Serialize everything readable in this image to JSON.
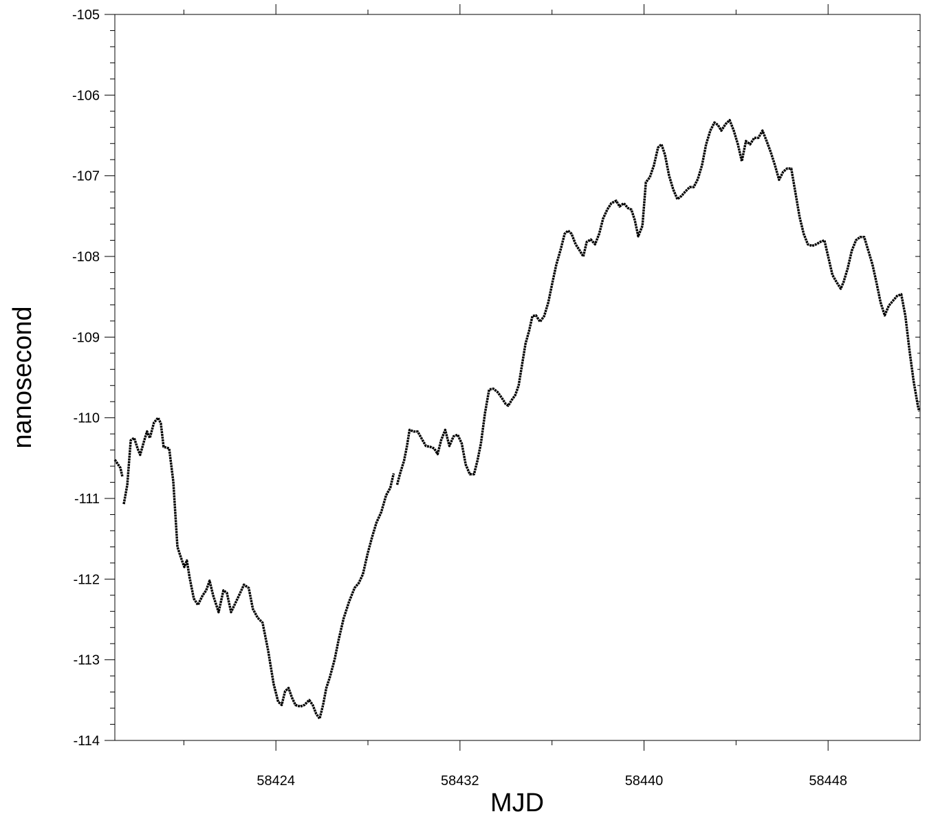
{
  "chart_data": {
    "type": "line",
    "x_label": "MJD",
    "y_label": "nanosecond",
    "xlim": [
      58417,
      58452
    ],
    "xticks": [
      58424,
      58432,
      58440,
      58448
    ],
    "xminorticks": [
      58420,
      58428,
      58436,
      58444
    ],
    "ylim": [
      -114,
      -105
    ],
    "yticks": [
      -105,
      -106,
      -107,
      -108,
      -109,
      -110,
      -111,
      -112,
      -113,
      -114
    ],
    "yminorticks": [
      -105.2,
      -105.4,
      -105.6,
      -105.8,
      -106.2,
      -106.4,
      -106.6,
      -106.8,
      -107.2,
      -107.4,
      -107.6,
      -107.8,
      -108.2,
      -108.4,
      -108.6,
      -108.8,
      -109.2,
      -109.4,
      -109.6,
      -109.8,
      -110.2,
      -110.4,
      -110.6,
      -110.8,
      -111.2,
      -111.4,
      -111.6,
      -111.8,
      -112.2,
      -112.4,
      -112.6,
      -112.8,
      -113.2,
      -113.4,
      -113.6,
      -113.8
    ],
    "color": "#000000",
    "x": [
      58417.0,
      58417.24,
      58417.33,
      58417.36,
      58417.39,
      58417.54,
      58417.69,
      58417.84,
      58417.99,
      58418.1,
      58418.28,
      58418.4,
      58418.52,
      58418.7,
      58418.88,
      58419.0,
      58419.12,
      58419.36,
      58419.54,
      58419.72,
      58419.87,
      58420.02,
      58420.13,
      58420.25,
      58420.43,
      58420.61,
      58420.82,
      58420.97,
      58421.12,
      58421.27,
      58421.51,
      58421.72,
      58421.87,
      58422.05,
      58422.22,
      58422.4,
      58422.61,
      58422.82,
      58423.0,
      58423.21,
      58423.42,
      58423.66,
      58423.9,
      58424.1,
      58424.25,
      58424.4,
      58424.55,
      58424.7,
      58424.85,
      58425.06,
      58425.24,
      58425.45,
      58425.6,
      58425.75,
      58425.9,
      58426.05,
      58426.19,
      58426.34,
      58426.55,
      58426.73,
      58426.94,
      58427.18,
      58427.42,
      58427.6,
      58427.78,
      58427.99,
      58428.19,
      58428.37,
      58428.58,
      58428.79,
      58428.97,
      58429.12,
      58429.18,
      58429.27,
      58429.39,
      58429.57,
      58429.69,
      58429.81,
      58429.99,
      58430.16,
      58430.34,
      58430.52,
      58430.7,
      58430.88,
      58431.03,
      58431.18,
      58431.36,
      58431.54,
      58431.72,
      58431.9,
      58432.08,
      58432.25,
      58432.43,
      58432.61,
      58432.76,
      58432.91,
      58433.09,
      58433.27,
      58433.45,
      58433.63,
      58433.81,
      58433.99,
      58434.1,
      58434.25,
      58434.4,
      58434.55,
      58434.7,
      58434.85,
      58435.0,
      58435.15,
      58435.3,
      58435.48,
      58435.66,
      58435.84,
      58436.02,
      58436.19,
      58436.37,
      58436.55,
      58436.7,
      58436.85,
      58437.03,
      58437.21,
      58437.36,
      58437.51,
      58437.69,
      58437.87,
      58438.05,
      58438.22,
      58438.4,
      58438.58,
      58438.79,
      58438.94,
      58439.12,
      58439.3,
      58439.45,
      58439.6,
      58439.75,
      58439.93,
      58440.08,
      58440.25,
      58440.43,
      58440.61,
      58440.76,
      58440.91,
      58441.09,
      58441.27,
      58441.45,
      58441.63,
      58441.81,
      58441.99,
      58442.16,
      58442.34,
      58442.52,
      58442.7,
      58442.88,
      58443.06,
      58443.21,
      58443.36,
      58443.54,
      58443.72,
      58443.9,
      58444.08,
      58444.25,
      58444.43,
      58444.61,
      58444.79,
      58444.97,
      58445.15,
      58445.33,
      58445.51,
      58445.69,
      58445.87,
      58446.05,
      58446.22,
      58446.4,
      58446.58,
      58446.76,
      58446.94,
      58447.12,
      58447.3,
      58447.48,
      58447.66,
      58447.84,
      58448.02,
      58448.19,
      58448.37,
      58448.55,
      58448.67,
      58448.85,
      58449.03,
      58449.21,
      58449.39,
      58449.57,
      58449.75,
      58449.93,
      58450.1,
      58450.28,
      58450.46,
      58450.64,
      58450.82,
      58451.0,
      58451.18,
      58451.36,
      58451.54,
      58451.72,
      58451.9,
      58451.96
    ],
    "values": [
      -110.52,
      -110.62,
      -110.73,
      null,
      -111.07,
      -110.83,
      -110.28,
      -110.25,
      -110.38,
      -110.46,
      -110.28,
      -110.17,
      -110.25,
      -110.06,
      -110.0,
      -110.07,
      -110.36,
      -110.38,
      -110.79,
      -111.6,
      -111.73,
      -111.85,
      -111.77,
      -111.98,
      -112.24,
      -112.32,
      -112.2,
      -112.14,
      -112.02,
      -112.2,
      -112.41,
      -112.14,
      -112.17,
      -112.41,
      -112.31,
      -112.2,
      -112.07,
      -112.11,
      -112.37,
      -112.48,
      -112.54,
      -112.88,
      -113.3,
      -113.52,
      -113.56,
      -113.39,
      -113.35,
      -113.47,
      -113.56,
      -113.58,
      -113.56,
      -113.5,
      -113.56,
      -113.67,
      -113.73,
      -113.56,
      -113.35,
      -113.22,
      -113.0,
      -112.75,
      -112.49,
      -112.28,
      -112.11,
      -112.05,
      -111.94,
      -111.68,
      -111.47,
      -111.3,
      -111.17,
      -110.96,
      -110.87,
      -110.69,
      null,
      -110.83,
      -110.7,
      -110.53,
      -110.36,
      -110.15,
      -110.17,
      -110.17,
      -110.26,
      -110.35,
      -110.36,
      -110.38,
      -110.45,
      -110.28,
      -110.15,
      -110.35,
      -110.23,
      -110.21,
      -110.32,
      -110.58,
      -110.7,
      -110.7,
      -110.53,
      -110.32,
      -109.94,
      -109.65,
      -109.64,
      -109.68,
      -109.75,
      -109.83,
      -109.85,
      -109.78,
      -109.72,
      -109.6,
      -109.34,
      -109.08,
      -108.93,
      -108.74,
      -108.73,
      -108.81,
      -108.74,
      -108.57,
      -108.32,
      -108.1,
      -107.92,
      -107.72,
      -107.68,
      -107.72,
      -107.85,
      -107.93,
      -108.0,
      -107.82,
      -107.79,
      -107.85,
      -107.72,
      -107.53,
      -107.42,
      -107.34,
      -107.31,
      -107.38,
      -107.34,
      -107.4,
      -107.42,
      -107.55,
      -107.75,
      -107.62,
      -107.08,
      -107.02,
      -106.87,
      -106.65,
      -106.61,
      -106.74,
      -107.0,
      -107.17,
      -107.29,
      -107.25,
      -107.19,
      -107.14,
      -107.14,
      -107.04,
      -106.87,
      -106.61,
      -106.44,
      -106.34,
      -106.37,
      -106.44,
      -106.36,
      -106.31,
      -106.44,
      -106.61,
      -106.82,
      -106.57,
      -106.61,
      -106.53,
      -106.53,
      -106.44,
      -106.57,
      -106.71,
      -106.87,
      -107.05,
      -106.95,
      -106.91,
      -106.91,
      -107.21,
      -107.51,
      -107.72,
      -107.85,
      -107.87,
      -107.85,
      -107.82,
      -107.8,
      -108.02,
      -108.23,
      -108.32,
      -108.4,
      -108.32,
      -108.15,
      -107.93,
      -107.8,
      -107.76,
      -107.76,
      -107.93,
      -108.1,
      -108.32,
      -108.57,
      -108.73,
      -108.61,
      -108.55,
      -108.49,
      -108.47,
      -108.74,
      -109.17,
      -109.55,
      -109.85,
      -109.92
    ]
  }
}
